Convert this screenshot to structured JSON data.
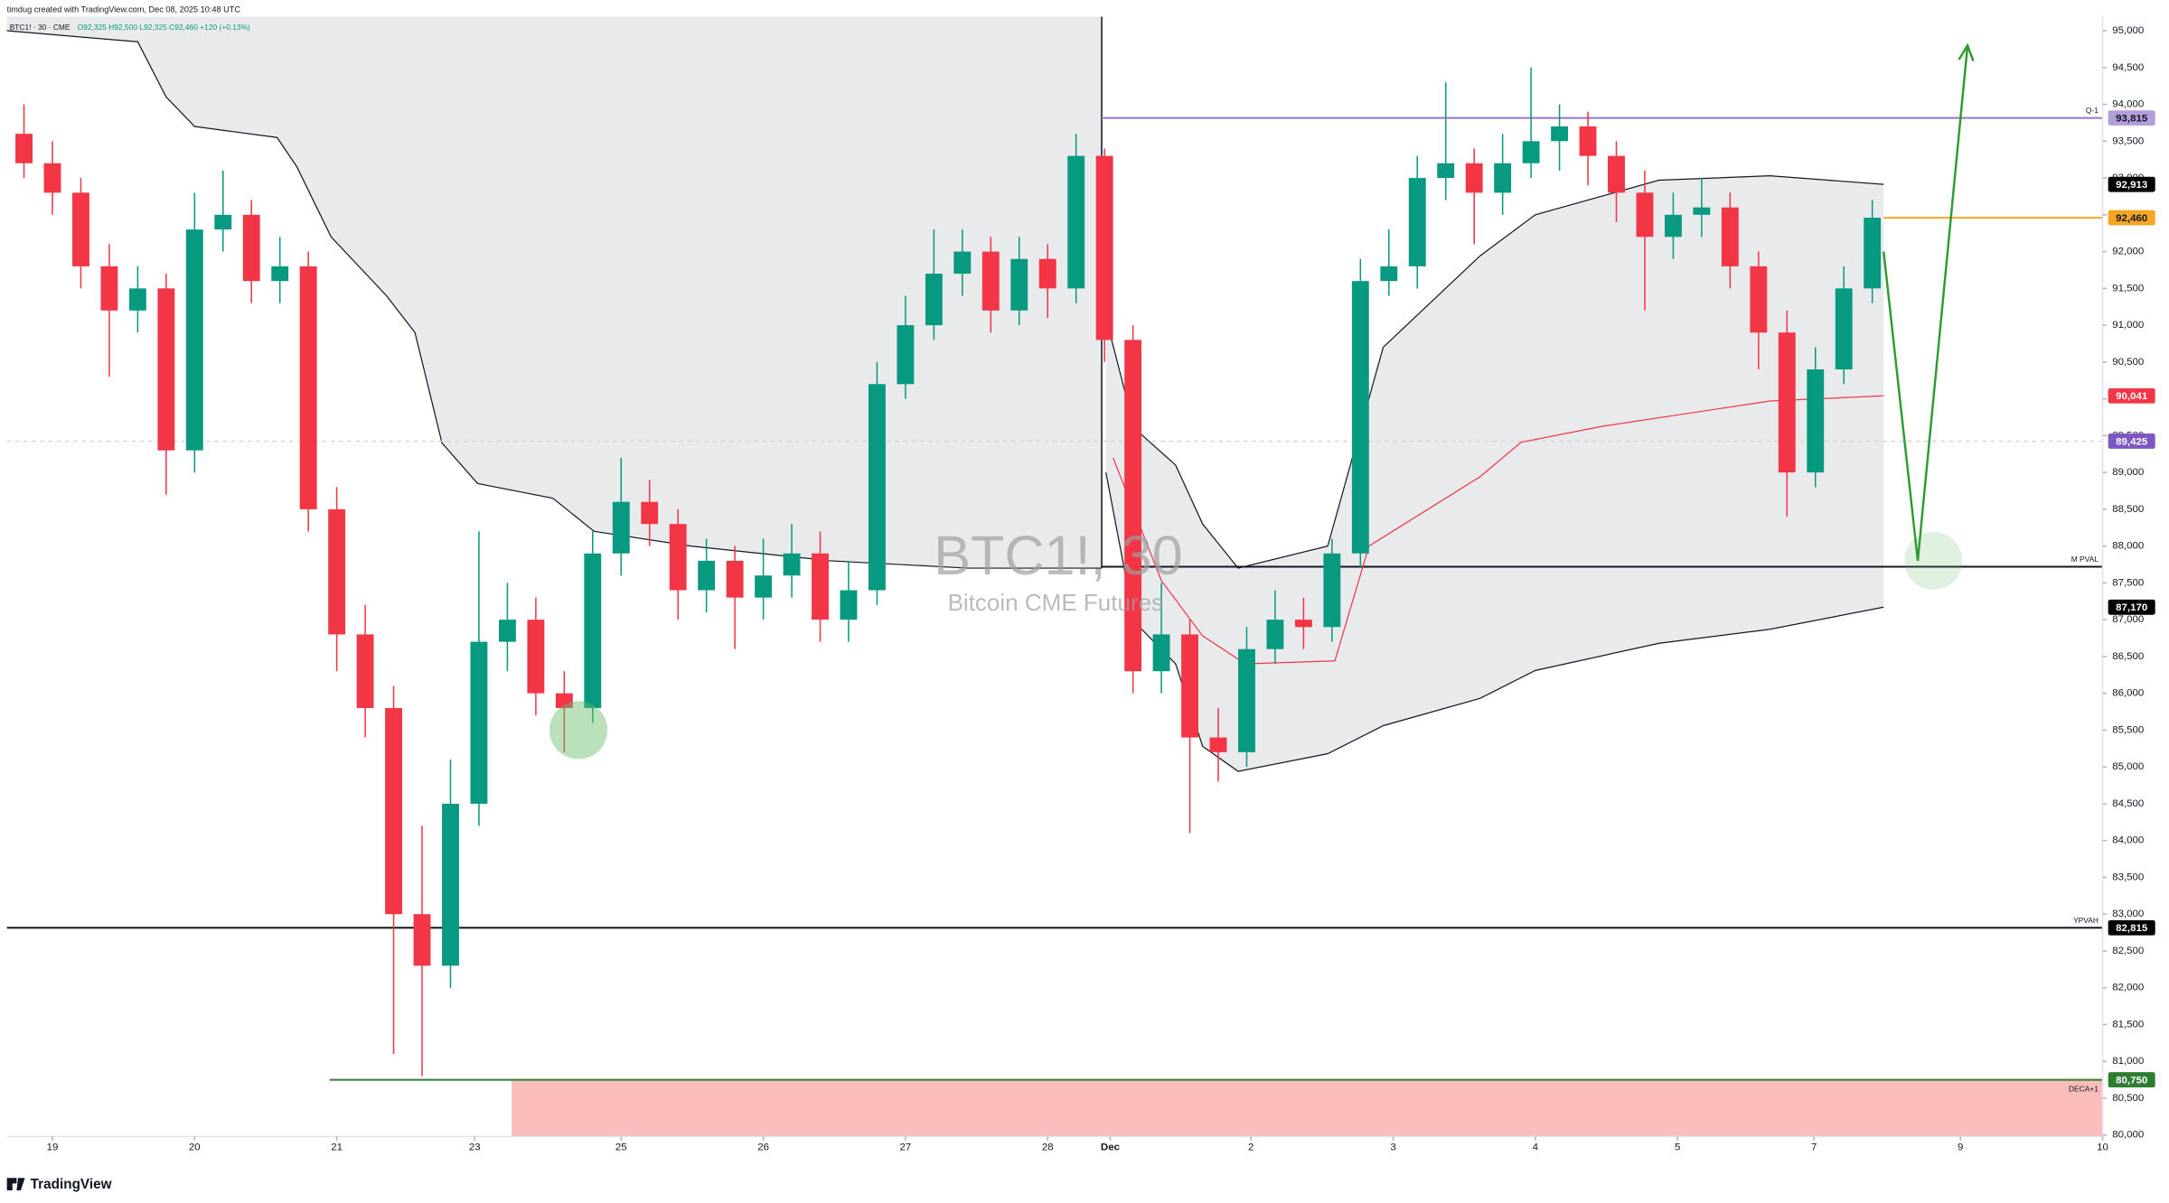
{
  "chart_data": {
    "type": "candlestick",
    "credit": "timdug created with TradingView.com, Dec 08, 2025 10:48 UTC",
    "symbol": "BTC1! · 30 · CME",
    "ohlc_text": "O92,325 H92,500 L92,325 C92,460 +120 (+0.13%)",
    "watermark_title": "BTC1!, 30",
    "watermark_subtitle": "Bitcoin CME Futures",
    "brand": "TradingView",
    "up_color": "#089981",
    "down_color": "#f23645",
    "x": [
      -0.2,
      0,
      0.2,
      0.4,
      0.6,
      0.8,
      1,
      1.2,
      1.4,
      1.6,
      1.8,
      2,
      2.2,
      2.4,
      2.6,
      2.8,
      3,
      3.2,
      3.4,
      3.6,
      3.8,
      4,
      4.2,
      4.4,
      4.6,
      4.8,
      5,
      5.2,
      5.4,
      5.6,
      5.8,
      6,
      6.2,
      6.4,
      6.6,
      6.8,
      7,
      7.2,
      7.4,
      7.6,
      7.8,
      8,
      8.2,
      8.4,
      8.6,
      8.8,
      9,
      9.2,
      9.4,
      9.6,
      9.8,
      10,
      10.2,
      10.4,
      10.6,
      10.8,
      11,
      11.2,
      11.4,
      11.6,
      11.8,
      12,
      12.2,
      12.4,
      12.6,
      12.8
    ],
    "open": [
      93600,
      93200,
      92800,
      91800,
      91200,
      91500,
      89300,
      92300,
      92500,
      91600,
      91800,
      88500,
      86800,
      85800,
      83000,
      82300,
      84500,
      86700,
      87000,
      86000,
      85800,
      87900,
      88600,
      88300,
      87400,
      87800,
      87300,
      87600,
      87900,
      87000,
      87400,
      90200,
      91000,
      91700,
      92000,
      91200,
      91900,
      91500,
      93300,
      90800,
      86300,
      86800,
      85400,
      85200,
      86600,
      87000,
      86900,
      87900,
      91600,
      91800,
      93000,
      93200,
      92800,
      93200,
      93500,
      93700,
      93300,
      92800,
      92200,
      92500,
      92600,
      91800,
      90900,
      89000,
      90400,
      91500
    ],
    "high": [
      94000,
      93500,
      93000,
      92100,
      91800,
      91700,
      92800,
      93100,
      92700,
      92200,
      92000,
      88800,
      87200,
      86100,
      84200,
      85100,
      88200,
      87500,
      87300,
      86300,
      88200,
      89200,
      88900,
      88500,
      88100,
      88000,
      88100,
      88300,
      88200,
      87800,
      90500,
      91400,
      92300,
      92300,
      92200,
      92200,
      92100,
      93600,
      93400,
      91000,
      87500,
      87000,
      85800,
      86900,
      87400,
      87300,
      88100,
      91900,
      92300,
      93300,
      94300,
      93400,
      93600,
      94500,
      94000,
      93900,
      93500,
      93100,
      92800,
      93000,
      92800,
      92000,
      91200,
      90700,
      91800,
      92700
    ],
    "low": [
      93000,
      92500,
      91500,
      90300,
      90900,
      88700,
      89000,
      92000,
      91300,
      91300,
      88200,
      86300,
      85400,
      81100,
      80800,
      82000,
      84200,
      86300,
      85700,
      85200,
      85600,
      87600,
      88000,
      87000,
      87100,
      86600,
      87000,
      87300,
      86700,
      86700,
      87200,
      90000,
      90800,
      91400,
      90900,
      91000,
      91100,
      91300,
      90500,
      86000,
      86000,
      84100,
      84800,
      85000,
      86400,
      86600,
      86700,
      87700,
      91400,
      91500,
      92700,
      92100,
      92500,
      93000,
      93100,
      92900,
      92400,
      91200,
      91900,
      92200,
      91500,
      90400,
      88400,
      88800,
      90200,
      91300
    ],
    "close": [
      93200,
      92800,
      91800,
      91200,
      91500,
      89300,
      92300,
      92500,
      91600,
      91800,
      88500,
      86800,
      85800,
      83000,
      82300,
      84500,
      86700,
      87000,
      86000,
      85800,
      87900,
      88600,
      88300,
      87400,
      87800,
      87300,
      87600,
      87900,
      87000,
      87400,
      90200,
      91000,
      91700,
      92000,
      91200,
      91900,
      91500,
      93300,
      90800,
      86300,
      86800,
      85400,
      85200,
      86600,
      87000,
      86900,
      87900,
      91600,
      91800,
      93000,
      93200,
      92800,
      93200,
      93500,
      93700,
      93300,
      92800,
      92200,
      92500,
      92600,
      91800,
      90900,
      89000,
      90400,
      91500,
      92460
    ],
    "xlim": [
      -0.32,
      14.42
    ],
    "xticks": [
      {
        "value": 0,
        "label": "19"
      },
      {
        "value": 1,
        "label": "20"
      },
      {
        "value": 2,
        "label": "21"
      },
      {
        "value": 2.97,
        "label": "23"
      },
      {
        "value": 4,
        "label": "25"
      },
      {
        "value": 5,
        "label": "26"
      },
      {
        "value": 6,
        "label": "27"
      },
      {
        "value": 7,
        "label": "28"
      },
      {
        "value": 7.44,
        "label": "Dec"
      },
      {
        "value": 8.43,
        "label": "2"
      },
      {
        "value": 9.43,
        "label": "3"
      },
      {
        "value": 10.43,
        "label": "4"
      },
      {
        "value": 11.43,
        "label": "5"
      },
      {
        "value": 12.39,
        "label": "7"
      },
      {
        "value": 13.42,
        "label": "9"
      },
      {
        "value": 14.42,
        "label": "10"
      }
    ],
    "ylim": [
      79980,
      95190
    ],
    "yticks": [
      {
        "value": 80000,
        "label": "80,000"
      },
      {
        "value": 80500,
        "label": "80,500"
      },
      {
        "value": 81000,
        "label": "81,000"
      },
      {
        "value": 81500,
        "label": "81,500"
      },
      {
        "value": 82000,
        "label": "82,000"
      },
      {
        "value": 82500,
        "label": "82,500"
      },
      {
        "value": 83000,
        "label": "83,000"
      },
      {
        "value": 83500,
        "label": "83,500"
      },
      {
        "value": 84000,
        "label": "84,000"
      },
      {
        "value": 84500,
        "label": "84,500"
      },
      {
        "value": 85000,
        "label": "85,000"
      },
      {
        "value": 85500,
        "label": "85,500"
      },
      {
        "value": 86000,
        "label": "86,000"
      },
      {
        "value": 86500,
        "label": "86,500"
      },
      {
        "value": 87000,
        "label": "87,000"
      },
      {
        "value": 87500,
        "label": "87,500"
      },
      {
        "value": 88000,
        "label": "88,000"
      },
      {
        "value": 88500,
        "label": "88,500"
      },
      {
        "value": 89000,
        "label": "89,000"
      },
      {
        "value": 89500,
        "label": "89,500"
      },
      {
        "value": 90000,
        "label": "90,000"
      },
      {
        "value": 90500,
        "label": "90,500"
      },
      {
        "value": 91000,
        "label": "91,000"
      },
      {
        "value": 91500,
        "label": "91,500"
      },
      {
        "value": 92000,
        "label": "92,000"
      },
      {
        "value": 92500,
        "label": "92,500"
      },
      {
        "value": 93000,
        "label": "93,000"
      },
      {
        "value": 93500,
        "label": "93,500"
      },
      {
        "value": 94000,
        "label": "94,000"
      },
      {
        "value": 94500,
        "label": "94,500"
      },
      {
        "value": 95000,
        "label": "95,000"
      }
    ],
    "bands": [
      {
        "fill_to": "top",
        "x": [
          -0.32,
          0.6,
          0.8,
          1,
          1.58,
          1.72,
          1.96,
          2.35,
          2.55,
          2.74,
          2.99,
          3.52,
          3.81,
          4.49,
          5.47,
          6.44,
          7.38
        ],
        "lower": [
          95000,
          94850,
          94100,
          93700,
          93550,
          93150,
          92200,
          91400,
          90900,
          89400,
          88850,
          88650,
          88200,
          88000,
          87800,
          87700,
          87700
        ]
      },
      {
        "fill_to": "lower",
        "x": [
          7.41,
          7.61,
          7.9,
          8.09,
          8.34,
          8.97,
          9.36,
          10.04,
          10.43,
          11.3,
          12.08,
          12.88
        ],
        "upper": [
          91100,
          89600,
          89100,
          88300,
          87700,
          88000,
          90700,
          91940,
          92500,
          92970,
          93030,
          92913
        ],
        "lower": [
          89000,
          86970,
          86400,
          85280,
          84940,
          85180,
          85560,
          85930,
          86310,
          86680,
          86870,
          87170
        ]
      }
    ],
    "vwap": {
      "color": "#f23645",
      "x": [
        7.46,
        7.8,
        8.09,
        8.39,
        9.02,
        9.26,
        9.65,
        10.04,
        10.33,
        10.91,
        12.08,
        12.88
      ],
      "values": [
        89200,
        87530,
        86780,
        86400,
        86440,
        88000,
        88470,
        88940,
        89410,
        89630,
        89970,
        90041
      ]
    },
    "levels": [
      {
        "value": 93815,
        "label": "Q-1",
        "color": "#9575cd",
        "x_from": 7.38,
        "style": "solid"
      },
      {
        "value": 92460,
        "color": "#f5a623",
        "x_from": 12.88,
        "style": "solid"
      },
      {
        "value": 89425,
        "color": "#d0d0d0",
        "style": "dashed"
      },
      {
        "value": 87720,
        "label": "M PVAL",
        "color": "#131722",
        "x_from": 7.38,
        "style": "solid"
      },
      {
        "value": 82815,
        "label": "YPVAH",
        "color": "#131722",
        "style": "solid"
      },
      {
        "value": 80750,
        "label": "DECA+1",
        "color": "#2e7d32",
        "x_from": 1.95,
        "style": "solid"
      }
    ],
    "zone": {
      "x_from": 3.23,
      "top": 80750,
      "color": "#fbbcbc"
    },
    "price_tags": [
      {
        "value": 93815,
        "label": "93,815",
        "color": "#b39ddb",
        "text_color": "#131722"
      },
      {
        "value": 92913,
        "label": "92,913",
        "color": "#000000",
        "text_color": "#ffffff"
      },
      {
        "value": 92460,
        "label": "92,460",
        "color": "#f5a623",
        "text_color": "#131722"
      },
      {
        "value": 90041,
        "label": "90,041",
        "color": "#f23645",
        "text_color": "#ffffff"
      },
      {
        "value": 89425,
        "label": "89,425",
        "color": "#7e57c2",
        "text_color": "#ffffff"
      },
      {
        "value": 87170,
        "label": "87,170",
        "color": "#000000",
        "text_color": "#ffffff"
      },
      {
        "value": 82815,
        "label": "82,815",
        "color": "#000000",
        "text_color": "#ffffff"
      },
      {
        "value": 80750,
        "label": "80,750",
        "color": "#2e7d32",
        "text_color": "#ffffff"
      }
    ],
    "circles": {
      "color": "#66bb6a",
      "x": [
        3.7,
        13.23
      ],
      "y": [
        85500,
        87800
      ]
    },
    "projection": {
      "color": "#2e9b2e",
      "x": [
        12.88,
        13.12,
        13.47
      ],
      "y": [
        92000,
        87800,
        94800
      ]
    }
  }
}
